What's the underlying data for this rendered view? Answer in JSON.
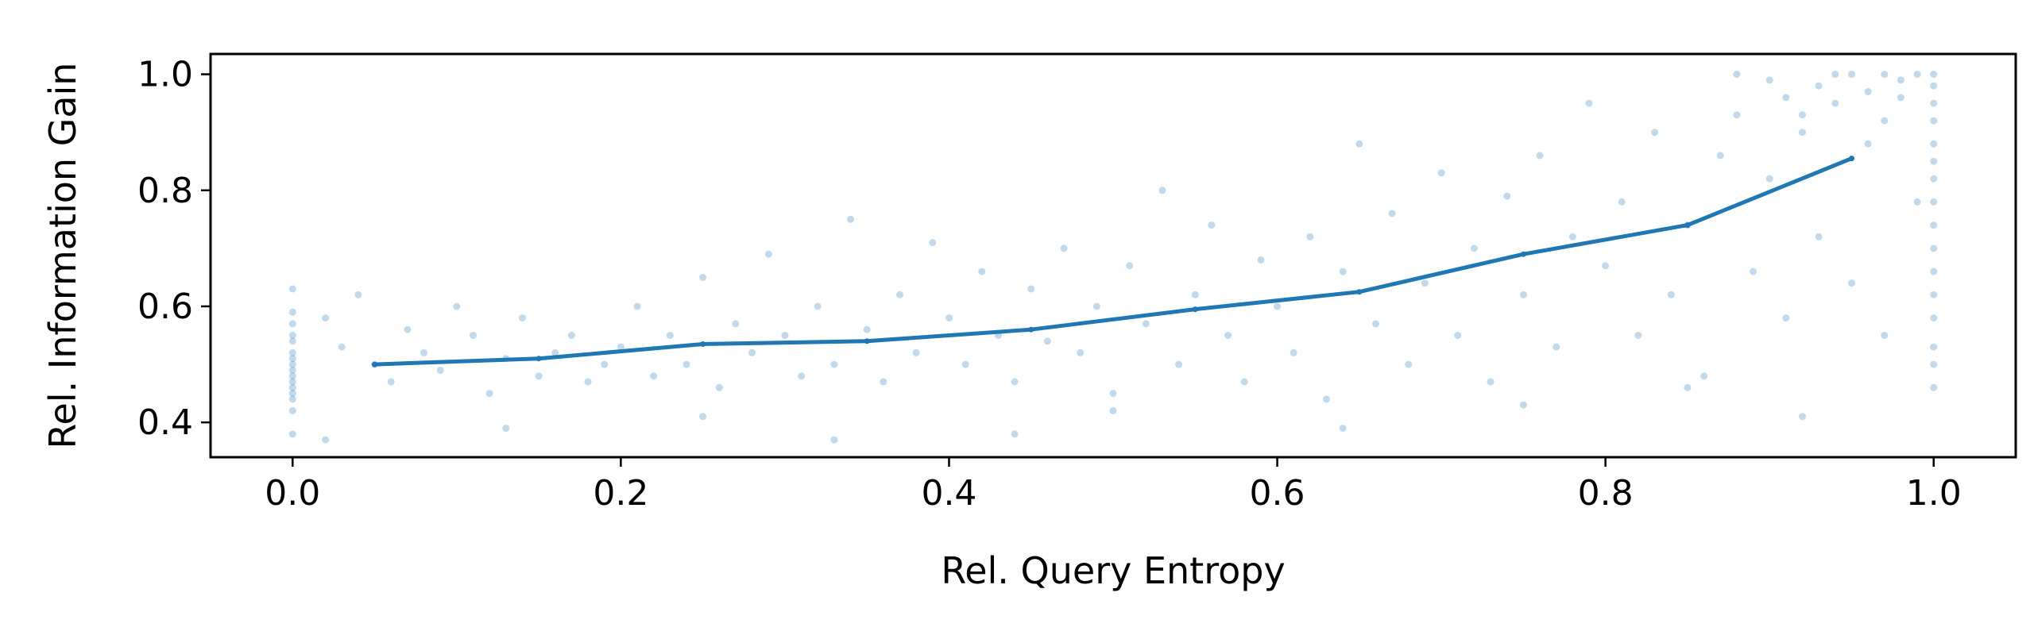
{
  "chart_data": {
    "type": "scatter",
    "title": "",
    "xlabel": "Rel. Query Entropy",
    "ylabel": "Rel. Information Gain",
    "xlim": [
      -0.05,
      1.05
    ],
    "ylim": [
      0.34,
      1.035
    ],
    "x_ticks": [
      {
        "value": 0.0,
        "label": "0.0"
      },
      {
        "value": 0.2,
        "label": "0.2"
      },
      {
        "value": 0.4,
        "label": "0.4"
      },
      {
        "value": 0.6,
        "label": "0.6"
      },
      {
        "value": 0.8,
        "label": "0.8"
      },
      {
        "value": 1.0,
        "label": "1.0"
      }
    ],
    "y_ticks": [
      {
        "value": 0.4,
        "label": "0.4"
      },
      {
        "value": 0.6,
        "label": "0.6"
      },
      {
        "value": 0.8,
        "label": "0.8"
      },
      {
        "value": 1.0,
        "label": "1.0"
      }
    ],
    "grid": false,
    "colors": {
      "scatter": "#1f77b4",
      "line": "#1f77b4"
    },
    "series": [
      {
        "kind": "scatter",
        "points": [
          [
            0.0,
            0.63
          ],
          [
            0.0,
            0.59
          ],
          [
            0.0,
            0.57
          ],
          [
            0.0,
            0.55
          ],
          [
            0.0,
            0.54
          ],
          [
            0.0,
            0.52
          ],
          [
            0.0,
            0.51
          ],
          [
            0.0,
            0.5
          ],
          [
            0.0,
            0.49
          ],
          [
            0.0,
            0.48
          ],
          [
            0.0,
            0.47
          ],
          [
            0.0,
            0.46
          ],
          [
            0.0,
            0.45
          ],
          [
            0.0,
            0.44
          ],
          [
            0.0,
            0.42
          ],
          [
            0.0,
            0.38
          ],
          [
            0.02,
            0.58
          ],
          [
            0.03,
            0.53
          ],
          [
            0.04,
            0.62
          ],
          [
            0.05,
            0.5
          ],
          [
            0.06,
            0.47
          ],
          [
            0.07,
            0.56
          ],
          [
            0.08,
            0.52
          ],
          [
            0.09,
            0.49
          ],
          [
            0.1,
            0.6
          ],
          [
            0.11,
            0.55
          ],
          [
            0.12,
            0.45
          ],
          [
            0.13,
            0.51
          ],
          [
            0.14,
            0.58
          ],
          [
            0.15,
            0.48
          ],
          [
            0.16,
            0.52
          ],
          [
            0.17,
            0.55
          ],
          [
            0.18,
            0.47
          ],
          [
            0.19,
            0.5
          ],
          [
            0.02,
            0.37
          ],
          [
            0.13,
            0.39
          ],
          [
            0.2,
            0.53
          ],
          [
            0.21,
            0.6
          ],
          [
            0.22,
            0.48
          ],
          [
            0.23,
            0.55
          ],
          [
            0.24,
            0.5
          ],
          [
            0.25,
            0.65
          ],
          [
            0.26,
            0.46
          ],
          [
            0.27,
            0.57
          ],
          [
            0.28,
            0.52
          ],
          [
            0.29,
            0.69
          ],
          [
            0.3,
            0.55
          ],
          [
            0.31,
            0.48
          ],
          [
            0.32,
            0.6
          ],
          [
            0.33,
            0.5
          ],
          [
            0.34,
            0.75
          ],
          [
            0.35,
            0.56
          ],
          [
            0.36,
            0.47
          ],
          [
            0.37,
            0.62
          ],
          [
            0.38,
            0.52
          ],
          [
            0.39,
            0.71
          ],
          [
            0.25,
            0.41
          ],
          [
            0.33,
            0.37
          ],
          [
            0.4,
            0.58
          ],
          [
            0.41,
            0.5
          ],
          [
            0.42,
            0.66
          ],
          [
            0.43,
            0.55
          ],
          [
            0.44,
            0.47
          ],
          [
            0.45,
            0.63
          ],
          [
            0.46,
            0.54
          ],
          [
            0.47,
            0.7
          ],
          [
            0.48,
            0.52
          ],
          [
            0.49,
            0.6
          ],
          [
            0.5,
            0.45
          ],
          [
            0.51,
            0.67
          ],
          [
            0.52,
            0.57
          ],
          [
            0.53,
            0.8
          ],
          [
            0.54,
            0.5
          ],
          [
            0.55,
            0.62
          ],
          [
            0.56,
            0.74
          ],
          [
            0.57,
            0.55
          ],
          [
            0.58,
            0.47
          ],
          [
            0.59,
            0.68
          ],
          [
            0.44,
            0.38
          ],
          [
            0.5,
            0.42
          ],
          [
            0.6,
            0.6
          ],
          [
            0.61,
            0.52
          ],
          [
            0.62,
            0.72
          ],
          [
            0.63,
            0.44
          ],
          [
            0.64,
            0.66
          ],
          [
            0.65,
            0.88
          ],
          [
            0.66,
            0.57
          ],
          [
            0.67,
            0.76
          ],
          [
            0.68,
            0.5
          ],
          [
            0.69,
            0.64
          ],
          [
            0.7,
            0.83
          ],
          [
            0.71,
            0.55
          ],
          [
            0.72,
            0.7
          ],
          [
            0.73,
            0.47
          ],
          [
            0.74,
            0.79
          ],
          [
            0.75,
            0.62
          ],
          [
            0.76,
            0.86
          ],
          [
            0.77,
            0.53
          ],
          [
            0.78,
            0.72
          ],
          [
            0.79,
            0.95
          ],
          [
            0.64,
            0.39
          ],
          [
            0.75,
            0.43
          ],
          [
            0.8,
            0.67
          ],
          [
            0.81,
            0.78
          ],
          [
            0.82,
            0.55
          ],
          [
            0.83,
            0.9
          ],
          [
            0.84,
            0.62
          ],
          [
            0.85,
            0.74
          ],
          [
            0.86,
            0.48
          ],
          [
            0.87,
            0.86
          ],
          [
            0.88,
            1.0
          ],
          [
            0.89,
            0.66
          ],
          [
            0.9,
            0.82
          ],
          [
            0.91,
            0.58
          ],
          [
            0.92,
            0.93
          ],
          [
            0.93,
            0.72
          ],
          [
            0.94,
            1.0
          ],
          [
            0.95,
            0.64
          ],
          [
            0.96,
            0.88
          ],
          [
            0.97,
            0.55
          ],
          [
            0.98,
            0.96
          ],
          [
            0.99,
            0.78
          ],
          [
            0.92,
            0.41
          ],
          [
            0.85,
            0.46
          ],
          [
            1.0,
            1.0
          ],
          [
            1.0,
            0.98
          ],
          [
            1.0,
            0.95
          ],
          [
            1.0,
            0.92
          ],
          [
            1.0,
            0.88
          ],
          [
            1.0,
            0.85
          ],
          [
            1.0,
            0.82
          ],
          [
            1.0,
            0.78
          ],
          [
            1.0,
            0.74
          ],
          [
            1.0,
            0.7
          ],
          [
            1.0,
            0.66
          ],
          [
            1.0,
            0.62
          ],
          [
            1.0,
            0.58
          ],
          [
            1.0,
            0.53
          ],
          [
            1.0,
            0.5
          ],
          [
            1.0,
            0.46
          ],
          [
            0.97,
            1.0
          ],
          [
            0.95,
            1.0
          ],
          [
            0.93,
            0.98
          ],
          [
            0.96,
            0.97
          ],
          [
            0.98,
            0.99
          ],
          [
            0.91,
            0.96
          ],
          [
            0.99,
            1.0
          ],
          [
            0.9,
            0.99
          ],
          [
            0.94,
            0.95
          ],
          [
            0.92,
            0.9
          ],
          [
            0.97,
            0.92
          ],
          [
            0.88,
            0.93
          ]
        ]
      },
      {
        "kind": "line",
        "x": [
          0.05,
          0.15,
          0.25,
          0.35,
          0.45,
          0.55,
          0.65,
          0.75,
          0.85,
          0.95
        ],
        "y": [
          0.5,
          0.51,
          0.535,
          0.54,
          0.56,
          0.595,
          0.625,
          0.69,
          0.74,
          0.855
        ]
      }
    ]
  }
}
